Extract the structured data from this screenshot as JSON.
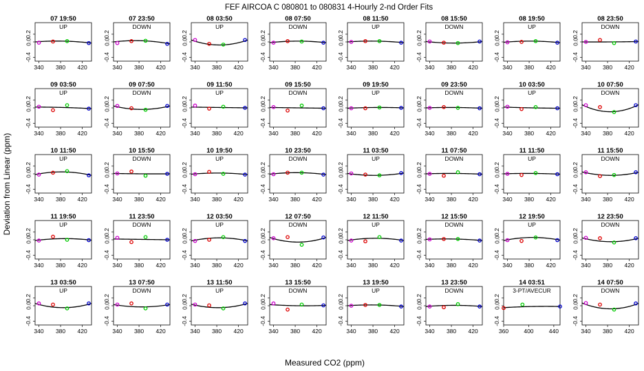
{
  "figure": {
    "title": "FEF   AIRCOA C   080801 to 080831   4-Hourly 2-nd Order Fits",
    "xlabel": "Measured CO2 (ppm)",
    "ylabel": "Deviation from Linear (ppm)"
  },
  "colors": {
    "low": "#0000ff",
    "mid_low": "#dd0000",
    "mid_high": "#00cc00",
    "high": "#0000cc",
    "lowest": "#cc00cc",
    "curve": "#000000"
  },
  "chart_data": [
    {
      "type": "scatter",
      "title": "07 19:50",
      "subtitle": "UP",
      "points": [
        [
          340,
          -0.02
        ],
        [
          366,
          0.01
        ],
        [
          392,
          0.02
        ],
        [
          432,
          -0.03
        ]
      ],
      "curve": [
        0.0,
        0.02,
        -0.03
      ]
    },
    {
      "type": "scatter",
      "title": "07 23:50",
      "subtitle": "DOWN",
      "points": [
        [
          340,
          -0.03
        ],
        [
          366,
          0.02
        ],
        [
          392,
          0.03
        ],
        [
          432,
          -0.05
        ]
      ],
      "curve": [
        0.0,
        0.03,
        -0.05
      ]
    },
    {
      "type": "scatter",
      "title": "08 03:50",
      "subtitle": "UP",
      "points": [
        [
          340,
          0.05
        ],
        [
          366,
          -0.05
        ],
        [
          392,
          -0.07
        ],
        [
          432,
          0.05
        ]
      ],
      "curve": [
        0.05,
        -0.08,
        0.05
      ]
    },
    {
      "type": "scatter",
      "title": "08 07:50",
      "subtitle": "DOWN",
      "points": [
        [
          340,
          -0.02
        ],
        [
          366,
          0.02
        ],
        [
          392,
          0.01
        ],
        [
          432,
          -0.02
        ]
      ],
      "curve": [
        -0.02,
        0.02,
        -0.02
      ]
    },
    {
      "type": "scatter",
      "title": "08 11:50",
      "subtitle": "UP",
      "points": [
        [
          340,
          0.0
        ],
        [
          366,
          0.02
        ],
        [
          392,
          0.02
        ],
        [
          432,
          -0.02
        ]
      ],
      "curve": [
        0.0,
        0.02,
        -0.02
      ]
    },
    {
      "type": "scatter",
      "title": "08 15:50",
      "subtitle": "DOWN",
      "points": [
        [
          340,
          0.01
        ],
        [
          366,
          -0.02
        ],
        [
          392,
          -0.03
        ],
        [
          432,
          0.01
        ]
      ],
      "curve": [
        0.01,
        -0.03,
        0.01
      ]
    },
    {
      "type": "scatter",
      "title": "08 19:50",
      "subtitle": "UP",
      "points": [
        [
          340,
          -0.01
        ],
        [
          366,
          0.0
        ],
        [
          392,
          0.02
        ],
        [
          432,
          -0.02
        ]
      ],
      "curve": [
        -0.01,
        0.02,
        -0.02
      ]
    },
    {
      "type": "scatter",
      "title": "08 23:50",
      "subtitle": "DOWN",
      "points": [
        [
          340,
          0.0
        ],
        [
          366,
          0.05
        ],
        [
          392,
          -0.03
        ],
        [
          432,
          0.01
        ]
      ],
      "curve": [
        0.0,
        0.0,
        0.01
      ]
    },
    {
      "type": "scatter",
      "title": "09 03:50",
      "subtitle": "UP",
      "points": [
        [
          340,
          0.03
        ],
        [
          366,
          -0.06
        ],
        [
          392,
          0.07
        ],
        [
          432,
          -0.02
        ]
      ],
      "curve": [
        0.02,
        0.01,
        -0.02
      ]
    },
    {
      "type": "scatter",
      "title": "09 07:50",
      "subtitle": "DOWN",
      "points": [
        [
          340,
          0.05
        ],
        [
          366,
          -0.01
        ],
        [
          392,
          -0.05
        ],
        [
          432,
          0.05
        ]
      ],
      "curve": [
        0.05,
        -0.04,
        0.05
      ]
    },
    {
      "type": "scatter",
      "title": "09 11:50",
      "subtitle": "UP",
      "points": [
        [
          340,
          0.06
        ],
        [
          366,
          -0.02
        ],
        [
          392,
          0.03
        ],
        [
          432,
          0.0
        ]
      ],
      "curve": [
        0.02,
        0.01,
        0.0
      ]
    },
    {
      "type": "scatter",
      "title": "09 15:50",
      "subtitle": "DOWN",
      "points": [
        [
          340,
          0.02
        ],
        [
          366,
          -0.07
        ],
        [
          392,
          0.06
        ],
        [
          432,
          -0.01
        ]
      ],
      "curve": [
        0.01,
        0.0,
        -0.01
      ]
    },
    {
      "type": "scatter",
      "title": "09 19:50",
      "subtitle": "UP",
      "points": [
        [
          340,
          -0.01
        ],
        [
          366,
          -0.01
        ],
        [
          392,
          0.01
        ],
        [
          432,
          0.0
        ]
      ],
      "curve": [
        -0.01,
        0.01,
        0.0
      ]
    },
    {
      "type": "scatter",
      "title": "09 23:50",
      "subtitle": "DOWN",
      "points": [
        [
          340,
          0.0
        ],
        [
          366,
          0.02
        ],
        [
          392,
          0.0
        ],
        [
          432,
          -0.01
        ]
      ],
      "curve": [
        0.0,
        0.01,
        -0.01
      ]
    },
    {
      "type": "scatter",
      "title": "10 03:50",
      "subtitle": "UP",
      "points": [
        [
          340,
          0.03
        ],
        [
          366,
          -0.03
        ],
        [
          392,
          0.02
        ],
        [
          432,
          -0.01
        ]
      ],
      "curve": [
        0.02,
        0.0,
        -0.01
      ]
    },
    {
      "type": "scatter",
      "title": "10 07:50",
      "subtitle": "DOWN",
      "points": [
        [
          340,
          0.07
        ],
        [
          366,
          0.02
        ],
        [
          392,
          -0.11
        ],
        [
          432,
          0.07
        ]
      ],
      "curve": [
        0.08,
        -0.1,
        0.08
      ]
    },
    {
      "type": "scatter",
      "title": "10 11:50",
      "subtitle": "UP",
      "points": [
        [
          340,
          -0.02
        ],
        [
          366,
          0.03
        ],
        [
          392,
          0.07
        ],
        [
          432,
          -0.04
        ]
      ],
      "curve": [
        -0.02,
        0.05,
        -0.04
      ]
    },
    {
      "type": "scatter",
      "title": "10 15:50",
      "subtitle": "DOWN",
      "points": [
        [
          340,
          0.01
        ],
        [
          366,
          0.06
        ],
        [
          392,
          -0.05
        ],
        [
          432,
          0.0
        ]
      ],
      "curve": [
        0.01,
        0.0,
        0.0
      ]
    },
    {
      "type": "scatter",
      "title": "10 19:50",
      "subtitle": "UP",
      "points": [
        [
          340,
          -0.01
        ],
        [
          366,
          0.05
        ],
        [
          392,
          0.0
        ],
        [
          432,
          -0.02
        ]
      ],
      "curve": [
        -0.01,
        0.02,
        -0.02
      ]
    },
    {
      "type": "scatter",
      "title": "10 23:50",
      "subtitle": "DOWN",
      "points": [
        [
          340,
          -0.01
        ],
        [
          366,
          0.03
        ],
        [
          392,
          0.03
        ],
        [
          432,
          -0.02
        ]
      ],
      "curve": [
        -0.01,
        0.03,
        -0.02
      ]
    },
    {
      "type": "scatter",
      "title": "11 03:50",
      "subtitle": "UP",
      "points": [
        [
          340,
          0.01
        ],
        [
          366,
          -0.02
        ],
        [
          392,
          -0.04
        ],
        [
          432,
          0.02
        ]
      ],
      "curve": [
        0.01,
        -0.04,
        0.02
      ]
    },
    {
      "type": "scatter",
      "title": "11 07:50",
      "subtitle": "DOWN",
      "points": [
        [
          340,
          0.0
        ],
        [
          366,
          -0.05
        ],
        [
          392,
          0.04
        ],
        [
          432,
          -0.01
        ]
      ],
      "curve": [
        0.0,
        0.01,
        -0.01
      ]
    },
    {
      "type": "scatter",
      "title": "11 11:50",
      "subtitle": "UP",
      "points": [
        [
          340,
          0.0
        ],
        [
          366,
          -0.03
        ],
        [
          392,
          0.02
        ],
        [
          432,
          -0.01
        ]
      ],
      "curve": [
        0.0,
        0.01,
        -0.01
      ]
    },
    {
      "type": "scatter",
      "title": "11 15:50",
      "subtitle": "DOWN",
      "points": [
        [
          340,
          0.04
        ],
        [
          366,
          -0.06
        ],
        [
          392,
          -0.03
        ],
        [
          432,
          0.04
        ]
      ],
      "curve": [
        0.05,
        -0.04,
        0.04
      ]
    },
    {
      "type": "scatter",
      "title": "11 19:50",
      "subtitle": "UP",
      "points": [
        [
          340,
          -0.02
        ],
        [
          366,
          0.08
        ],
        [
          392,
          0.0
        ],
        [
          432,
          -0.01
        ]
      ],
      "curve": [
        -0.02,
        0.03,
        -0.01
      ]
    },
    {
      "type": "scatter",
      "title": "11 23:50",
      "subtitle": "DOWN",
      "points": [
        [
          340,
          0.05
        ],
        [
          366,
          -0.06
        ],
        [
          392,
          0.07
        ],
        [
          432,
          0.0
        ]
      ],
      "curve": [
        0.02,
        0.01,
        0.0
      ]
    },
    {
      "type": "scatter",
      "title": "12 03:50",
      "subtitle": "UP",
      "points": [
        [
          340,
          -0.03
        ],
        [
          366,
          0.0
        ],
        [
          392,
          0.07
        ],
        [
          432,
          -0.03
        ]
      ],
      "curve": [
        -0.03,
        0.05,
        -0.03
      ]
    },
    {
      "type": "scatter",
      "title": "12 07:50",
      "subtitle": "DOWN",
      "points": [
        [
          340,
          0.04
        ],
        [
          366,
          0.07
        ],
        [
          392,
          -0.13
        ],
        [
          432,
          0.06
        ]
      ],
      "curve": [
        0.06,
        -0.06,
        0.06
      ]
    },
    {
      "type": "scatter",
      "title": "12 11:50",
      "subtitle": "UP",
      "points": [
        [
          340,
          -0.02
        ],
        [
          366,
          -0.04
        ],
        [
          392,
          0.07
        ],
        [
          432,
          -0.02
        ]
      ],
      "curve": [
        -0.02,
        0.04,
        -0.02
      ]
    },
    {
      "type": "scatter",
      "title": "12 15:50",
      "subtitle": "DOWN",
      "points": [
        [
          340,
          0.01
        ],
        [
          366,
          0.02
        ],
        [
          392,
          0.02
        ],
        [
          432,
          -0.02
        ]
      ],
      "curve": [
        0.01,
        0.02,
        -0.02
      ]
    },
    {
      "type": "scatter",
      "title": "12 19:50",
      "subtitle": "UP",
      "points": [
        [
          340,
          -0.01
        ],
        [
          366,
          -0.03
        ],
        [
          392,
          0.06
        ],
        [
          432,
          -0.01
        ]
      ],
      "curve": [
        -0.02,
        0.06,
        -0.01
      ]
    },
    {
      "type": "scatter",
      "title": "12 23:50",
      "subtitle": "DOWN",
      "points": [
        [
          340,
          0.05
        ],
        [
          366,
          0.04
        ],
        [
          392,
          -0.07
        ],
        [
          432,
          0.04
        ]
      ],
      "curve": [
        0.05,
        -0.05,
        0.04
      ]
    },
    {
      "type": "scatter",
      "title": "13 03:50",
      "subtitle": "UP",
      "points": [
        [
          340,
          0.06
        ],
        [
          366,
          0.03
        ],
        [
          392,
          -0.07
        ],
        [
          432,
          0.06
        ]
      ],
      "curve": [
        0.06,
        -0.05,
        0.06
      ]
    },
    {
      "type": "scatter",
      "title": "13 07:50",
      "subtitle": "DOWN",
      "points": [
        [
          340,
          0.03
        ],
        [
          366,
          0.06
        ],
        [
          392,
          -0.07
        ],
        [
          432,
          0.03
        ]
      ],
      "curve": [
        0.03,
        -0.03,
        0.03
      ]
    },
    {
      "type": "scatter",
      "title": "13 11:50",
      "subtitle": "UP",
      "points": [
        [
          340,
          0.03
        ],
        [
          366,
          0.01
        ],
        [
          392,
          -0.07
        ],
        [
          432,
          0.06
        ]
      ],
      "curve": [
        0.04,
        -0.05,
        0.06
      ]
    },
    {
      "type": "scatter",
      "title": "13 15:50",
      "subtitle": "DOWN",
      "points": [
        [
          340,
          0.06
        ],
        [
          366,
          -0.1
        ],
        [
          392,
          0.03
        ],
        [
          432,
          0.01
        ]
      ],
      "curve": [
        0.03,
        0.0,
        0.01
      ]
    },
    {
      "type": "scatter",
      "title": "13 19:50",
      "subtitle": "UP",
      "points": [
        [
          340,
          0.0
        ],
        [
          366,
          0.02
        ],
        [
          392,
          0.02
        ],
        [
          432,
          -0.02
        ]
      ],
      "curve": [
        0.0,
        0.02,
        -0.02
      ]
    },
    {
      "type": "scatter",
      "title": "13 23:50",
      "subtitle": "DOWN",
      "points": [
        [
          340,
          -0.02
        ],
        [
          366,
          -0.04
        ],
        [
          392,
          0.04
        ],
        [
          432,
          -0.02
        ]
      ],
      "curve": [
        -0.02,
        0.01,
        -0.02
      ]
    },
    {
      "type": "scatter",
      "title": "14 03:51",
      "subtitle": "3-PT/AVECUR",
      "xlim": [
        360,
        450
      ],
      "xticks": [
        360,
        400,
        440
      ],
      "points": [
        [
          360,
          -0.06
        ],
        [
          390,
          0.03
        ],
        [
          450,
          -0.02
        ]
      ],
      "curve": [
        -0.05,
        -0.02,
        -0.02
      ]
    },
    {
      "type": "scatter",
      "title": "14 07:50",
      "subtitle": "DOWN",
      "points": [
        [
          340,
          0.07
        ],
        [
          366,
          0.03
        ],
        [
          392,
          -0.1
        ],
        [
          432,
          0.06
        ]
      ],
      "curve": [
        0.07,
        -0.08,
        0.06
      ]
    }
  ],
  "axes_defaults": {
    "xlim": [
      333,
      437
    ],
    "ylim": [
      -0.5,
      0.5
    ],
    "xticks": [
      340,
      380,
      420
    ],
    "yticks": [
      -0.4,
      0.0,
      0.2
    ],
    "ytick_labels": [
      "-0.4",
      "0.0",
      "0.2"
    ]
  }
}
